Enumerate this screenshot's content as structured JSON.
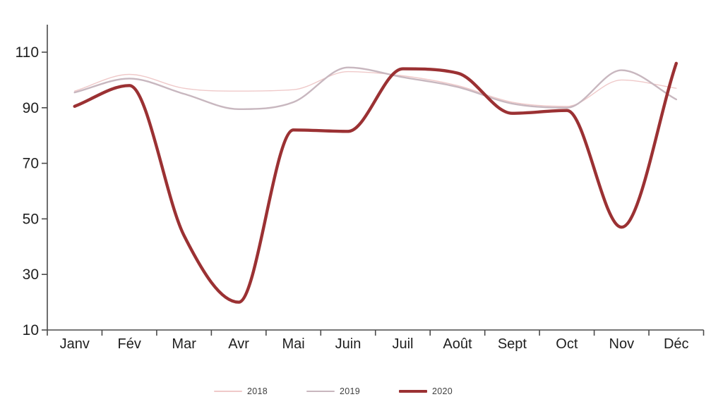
{
  "chart_data": {
    "type": "line",
    "title": "",
    "smooth": true,
    "grid": false,
    "legend_position": "bottom",
    "categories": [
      "Janv",
      "Fév",
      "Mar",
      "Avr",
      "Mai",
      "Juin",
      "Juil",
      "Août",
      "Sept",
      "Oct",
      "Nov",
      "Déc"
    ],
    "y_ticks": [
      10,
      30,
      50,
      70,
      90,
      110
    ],
    "ylim": [
      10,
      115
    ],
    "axis_color": "#4a4a4a",
    "tick_label_color": "#1f1f1f",
    "legend_text_color": "#3f3f3f",
    "series": [
      {
        "name": "2018",
        "color": "#efc9c9",
        "stroke_width": 1.4,
        "values": [
          96,
          102,
          97,
          96,
          96.5,
          103,
          101.5,
          98,
          92,
          90.5,
          100,
          97
        ]
      },
      {
        "name": "2019",
        "color": "#c8b7bf",
        "stroke_width": 2.4,
        "values": [
          95.5,
          100.5,
          95,
          89.5,
          92,
          104.5,
          101,
          97.5,
          91.5,
          90,
          103.5,
          93
        ]
      },
      {
        "name": "2020",
        "color": "#9b3133",
        "stroke_width": 4.4,
        "values": [
          90.5,
          98,
          44,
          20,
          82,
          81.5,
          104,
          102.5,
          88,
          89,
          47,
          106
        ]
      }
    ]
  }
}
